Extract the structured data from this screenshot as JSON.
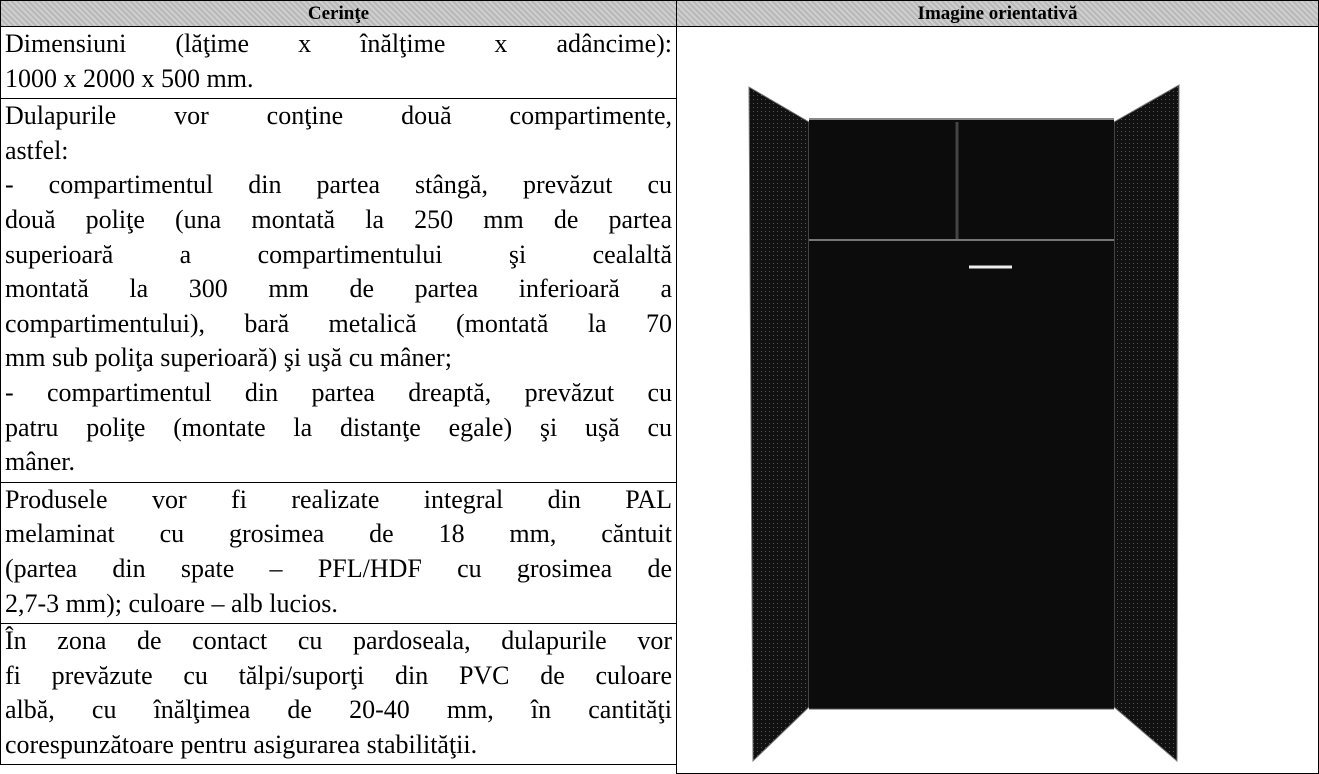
{
  "table": {
    "header": [
      "Cerinţe",
      "Imagine orientativă"
    ],
    "rows": [
      {
        "paragraphs": [
          [
            "Dimensiuni (lăţime x înălţime x adâncime):",
            "1000 x 2000 x 500 mm."
          ]
        ]
      },
      {
        "paragraphs": [
          [
            "Dulapurile vor conţine două compartimente,",
            "astfel:"
          ],
          [
            "- compartimentul din partea stângă, prevăzut cu",
            "două poliţe (una montată la 250 mm de partea",
            "superioară a compartimentului şi cealaltă",
            "montată la 300 mm de partea inferioară a",
            "compartimentului), bară metalică (montată la 70",
            "mm sub poliţa superioară) şi uşă cu mâner;"
          ],
          [
            "- compartimentul din partea dreaptă, prevăzut cu",
            "patru poliţe (montate la distanţe egale) şi uşă cu",
            "mâner."
          ]
        ]
      },
      {
        "paragraphs": [
          [
            "Produsele vor fi realizate integral din PAL",
            "melaminat cu grosimea de 18 mm, căntuit",
            "(partea din spate – PFL/HDF cu grosimea de",
            "2,7-3 mm); culoare – alb lucios."
          ]
        ]
      },
      {
        "paragraphs": [
          [
            "În zona de contact cu pardoseala, dulapurile vor",
            "fi prevăzute cu  tălpi/suporţi din PVC de culoare",
            "albă, cu înălţimea de 20-40 mm, în cantităţi",
            "corespunzătoare pentru asigurarea stabilităţii."
          ]
        ]
      }
    ]
  }
}
